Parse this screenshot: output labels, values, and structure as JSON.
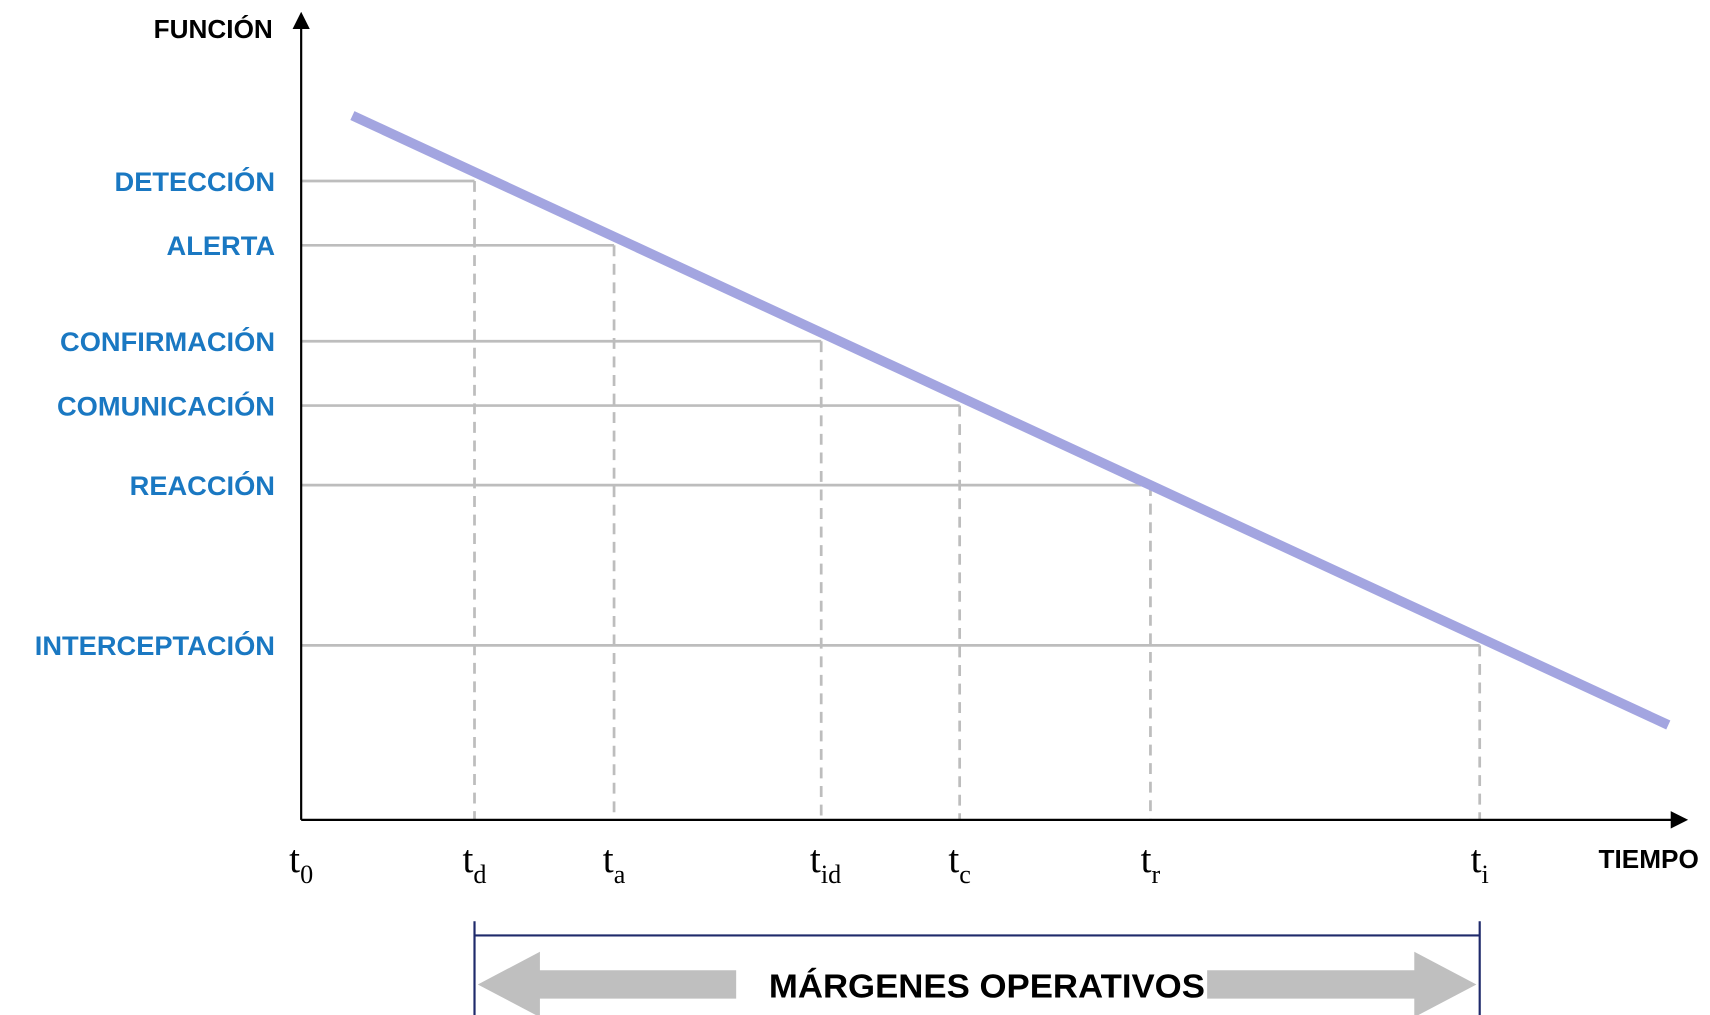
{
  "y_axis_label": "FUNCIÓN",
  "x_axis_label": "TIEMPO",
  "levels": [
    "DETECCIÓN",
    "ALERTA",
    "CONFIRMACIÓN",
    "COMUNICACIÓN",
    "REACCIÓN",
    "INTERCEPTACIÓN"
  ],
  "times": [
    {
      "base": "t",
      "sub": "0"
    },
    {
      "base": "t",
      "sub": "d"
    },
    {
      "base": "t",
      "sub": "a"
    },
    {
      "base": "t",
      "sub": "id"
    },
    {
      "base": "t",
      "sub": "c"
    },
    {
      "base": "t",
      "sub": "r"
    },
    {
      "base": "t",
      "sub": "i"
    }
  ],
  "margin_label": "MÁRGENES OPERATIVOS"
}
